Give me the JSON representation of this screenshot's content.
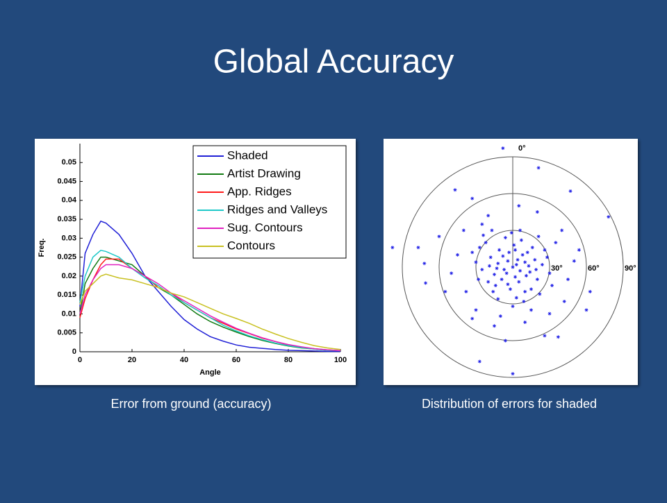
{
  "title": "Global Accuracy",
  "chart_data": [
    {
      "type": "line",
      "caption": "Error from ground (accuracy)",
      "xlabel": "Angle",
      "ylabel": "Freq.",
      "xlim": [
        0,
        100
      ],
      "xticks": [
        0,
        20,
        40,
        60,
        80,
        100
      ],
      "ylim": [
        0,
        0.055
      ],
      "yticks": [
        0,
        0.005,
        0.01,
        0.015,
        0.02,
        0.025,
        0.03,
        0.035,
        0.04,
        0.045,
        0.05
      ],
      "legend": "upper right",
      "x": [
        0,
        2,
        5,
        8,
        10,
        15,
        20,
        25,
        30,
        35,
        40,
        45,
        50,
        55,
        60,
        65,
        70,
        75,
        80,
        85,
        90,
        95,
        100
      ],
      "series": [
        {
          "name": "Shaded",
          "color": "#1f1fd6",
          "values": [
            0.012,
            0.026,
            0.031,
            0.0345,
            0.034,
            0.031,
            0.026,
            0.02,
            0.016,
            0.012,
            0.0085,
            0.006,
            0.004,
            0.0028,
            0.0018,
            0.0012,
            0.0009,
            0.0006,
            0.0004,
            0.0003,
            0.0002,
            0.0001,
            0.0001
          ]
        },
        {
          "name": "Artist Drawing",
          "color": "#117a11",
          "values": [
            0.01,
            0.018,
            0.022,
            0.025,
            0.025,
            0.024,
            0.023,
            0.02,
            0.017,
            0.015,
            0.0125,
            0.01,
            0.008,
            0.0065,
            0.0052,
            0.004,
            0.003,
            0.0022,
            0.0015,
            0.001,
            0.0007,
            0.0004,
            0.0003
          ]
        },
        {
          "name": "App. Ridges",
          "color": "#ff1a1a",
          "values": [
            0.009,
            0.014,
            0.019,
            0.023,
            0.0245,
            0.0245,
            0.022,
            0.02,
            0.017,
            0.0155,
            0.013,
            0.011,
            0.009,
            0.0075,
            0.006,
            0.0048,
            0.0036,
            0.0027,
            0.0018,
            0.0012,
            0.0008,
            0.0005,
            0.0003
          ]
        },
        {
          "name": "Ridges and Valleys",
          "color": "#1ec8c8",
          "values": [
            0.013,
            0.02,
            0.025,
            0.0268,
            0.0265,
            0.025,
            0.022,
            0.0195,
            0.0175,
            0.015,
            0.013,
            0.011,
            0.009,
            0.007,
            0.0055,
            0.0042,
            0.0032,
            0.0023,
            0.0016,
            0.0011,
            0.0007,
            0.0004,
            0.0003
          ]
        },
        {
          "name": "Sug. Contours",
          "color": "#e020c0",
          "values": [
            0.01,
            0.015,
            0.019,
            0.022,
            0.023,
            0.023,
            0.022,
            0.02,
            0.018,
            0.0155,
            0.0135,
            0.0115,
            0.0095,
            0.0078,
            0.0062,
            0.0049,
            0.0037,
            0.0027,
            0.0019,
            0.0013,
            0.0008,
            0.0005,
            0.0003
          ]
        },
        {
          "name": "Contours",
          "color": "#c8c020",
          "values": [
            0.0125,
            0.016,
            0.018,
            0.02,
            0.0205,
            0.0195,
            0.019,
            0.018,
            0.017,
            0.0155,
            0.0145,
            0.013,
            0.0115,
            0.01,
            0.0088,
            0.0075,
            0.006,
            0.0047,
            0.0035,
            0.0025,
            0.0016,
            0.001,
            0.0006
          ]
        }
      ]
    },
    {
      "type": "polar",
      "caption": "Distribution of errors for shaded",
      "color": "#1f1fe6",
      "rlim": [
        0,
        90
      ],
      "rticks": [
        {
          "value": 30,
          "label": "30°"
        },
        {
          "value": 60,
          "label": "60°"
        },
        {
          "value": 90,
          "label": "90°"
        }
      ],
      "thetaticks": [
        {
          "value": 0,
          "label": "0°"
        }
      ],
      "x": [
        -8,
        21,
        47,
        78,
        -98,
        -77,
        -47,
        -33,
        0,
        -27,
        37,
        26,
        -6,
        -33,
        -72,
        -71,
        63,
        54,
        60,
        -60,
        -45,
        -50,
        -40,
        40,
        45,
        50,
        -30,
        30,
        10,
        -15,
        20,
        -20,
        5,
        -55,
        35,
        -38,
        42,
        -10,
        15,
        -25,
        0,
        3,
        -4,
        6,
        -7,
        2,
        10,
        -12,
        8,
        -3,
        5,
        -9,
        14,
        -15,
        12,
        -11,
        1,
        -2,
        18,
        -18,
        20,
        -20,
        7,
        -6,
        15,
        -16,
        24,
        -25,
        3,
        -1,
        26,
        -27,
        22,
        -22,
        9,
        -12,
        30,
        -30,
        4,
        -5,
        11,
        -8,
        16,
        -14,
        19,
        -19,
        2,
        -4,
        13,
        -13,
        6,
        -28,
        28,
        0,
        -33,
        32,
        -24,
        21,
        -17,
        10
      ],
      "values": [
        97,
        81,
        62,
        41,
        16,
        16,
        63,
        56,
        -87,
        -77,
        -57,
        -56,
        -60,
        -42,
        3,
        -13,
        -20,
        14,
        -35,
        25,
        10,
        -5,
        30,
        30,
        -10,
        5,
        -35,
        -38,
        -45,
        -48,
        45,
        42,
        50,
        -20,
        20,
        -20,
        -28,
        -40,
        -35,
        35,
        0,
        2,
        5,
        -3,
        -2,
        -8,
        4,
        3,
        10,
        12,
        -12,
        -10,
        -4,
        -6,
        12,
        14,
        18,
        -18,
        6,
        8,
        -10,
        -12,
        22,
        24,
        -18,
        -20,
        2,
        -2,
        -25,
        28,
        14,
        16,
        -22,
        20,
        -28,
        -26,
        -5,
        4,
        6,
        -5,
        -7,
        9,
        16,
        -15,
        -2,
        1,
        14,
        -14,
        1,
        -1,
        30,
        -10,
        8,
        -32,
        12,
        -15,
        26,
        25,
        30,
        -20
      ]
    }
  ]
}
